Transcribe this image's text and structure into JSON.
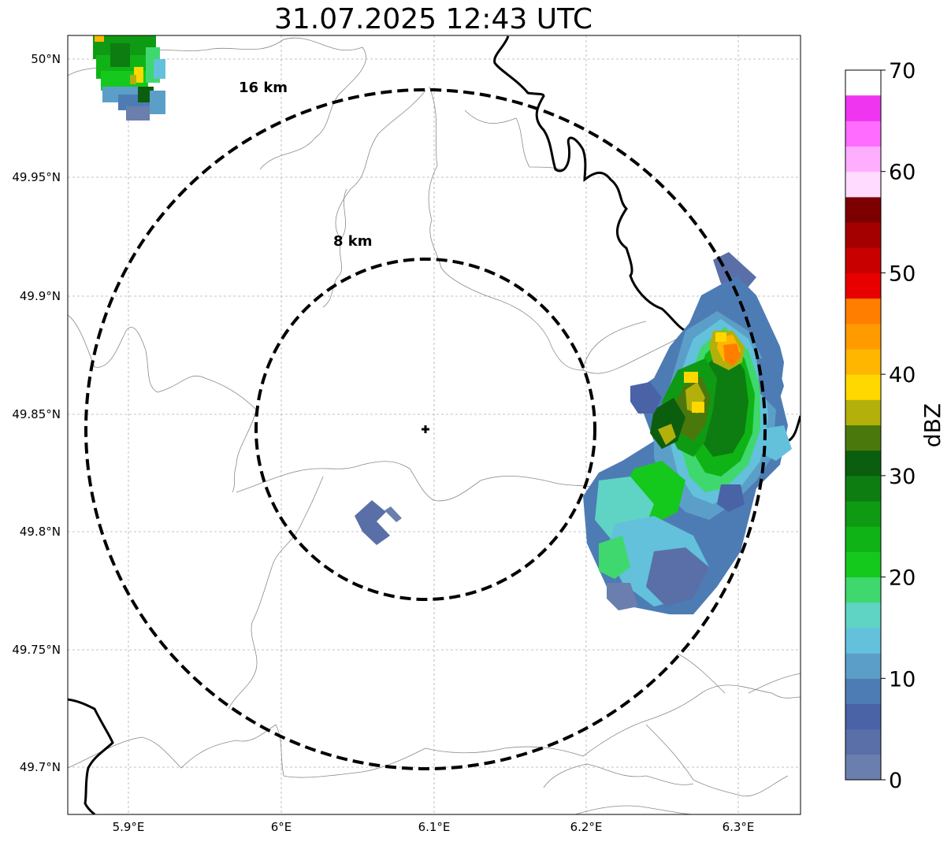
{
  "title": "31.07.2025 12:43 UTC",
  "map": {
    "lon_ticks": [
      "5.9°E",
      "6°E",
      "6.1°E",
      "6.2°E",
      "6.3°E"
    ],
    "lat_ticks": [
      "50°N",
      "49.95°N",
      "49.9°N",
      "49.85°N",
      "49.8°N",
      "49.75°N",
      "49.7°N"
    ],
    "radar_site": {
      "lon": 6.096,
      "lat": 49.843
    },
    "range_rings": [
      {
        "label": "8 km",
        "radius_km": 8
      },
      {
        "label": "16 km",
        "radius_km": 16
      }
    ]
  },
  "colorbar": {
    "label": "dBZ",
    "tick_labels": [
      "0",
      "10",
      "20",
      "30",
      "40",
      "50",
      "60",
      "70"
    ],
    "vmin": 0,
    "vmax": 70,
    "step": 2.5,
    "colors": [
      "#6a7fad",
      "#5a6fa8",
      "#4a62a6",
      "#4d7cb4",
      "#5b9fc9",
      "#63c1dc",
      "#5fd4c4",
      "#3fd86e",
      "#15c81c",
      "#10b316",
      "#0f9a14",
      "#0d7d11",
      "#0b5e0d",
      "#4a780d",
      "#b3b00b",
      "#ffd800",
      "#ffb600",
      "#ff9a00",
      "#ff7e00",
      "#e80000",
      "#c80000",
      "#a40000",
      "#7c0000",
      "#ffdcff",
      "#ffaeff",
      "#ff6cff",
      "#f035f0"
    ]
  }
}
